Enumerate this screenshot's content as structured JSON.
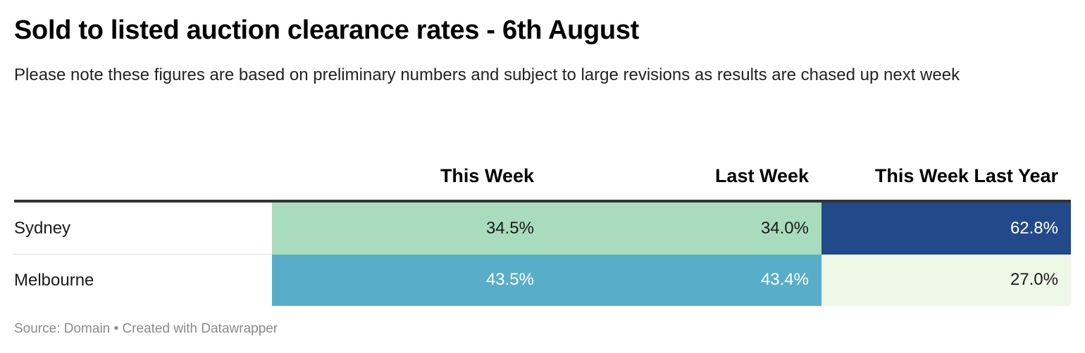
{
  "title": "Sold to listed auction clearance rates - 6th August",
  "subtitle": "Please note these figures are based on preliminary numbers and subject to large revisions as results are chased up next week",
  "footer": {
    "source": "Source: Domain",
    "separator": "•",
    "credit": "Created with Datawrapper"
  },
  "chart_data": {
    "type": "table",
    "columns": [
      "",
      "This Week",
      "Last Week",
      "This Week Last Year"
    ],
    "rows": [
      {
        "city": "Sydney",
        "values": [
          "34.5%",
          "34.0%",
          "62.8%"
        ],
        "numbers": [
          34.5,
          34.0,
          62.8
        ],
        "colors": [
          "#a9dcbd",
          "#a9dcbd",
          "#224a8a"
        ],
        "text_colors": [
          "#1a1a1a",
          "#1a1a1a",
          "#ffffff"
        ]
      },
      {
        "city": "Melbourne",
        "values": [
          "43.5%",
          "43.4%",
          "27.0%"
        ],
        "numbers": [
          43.5,
          43.4,
          27.0
        ],
        "colors": [
          "#58aec8",
          "#58aec8",
          "#eef8e6"
        ],
        "text_colors": [
          "#ffffff",
          "#ffffff",
          "#1a1a1a"
        ]
      }
    ]
  }
}
